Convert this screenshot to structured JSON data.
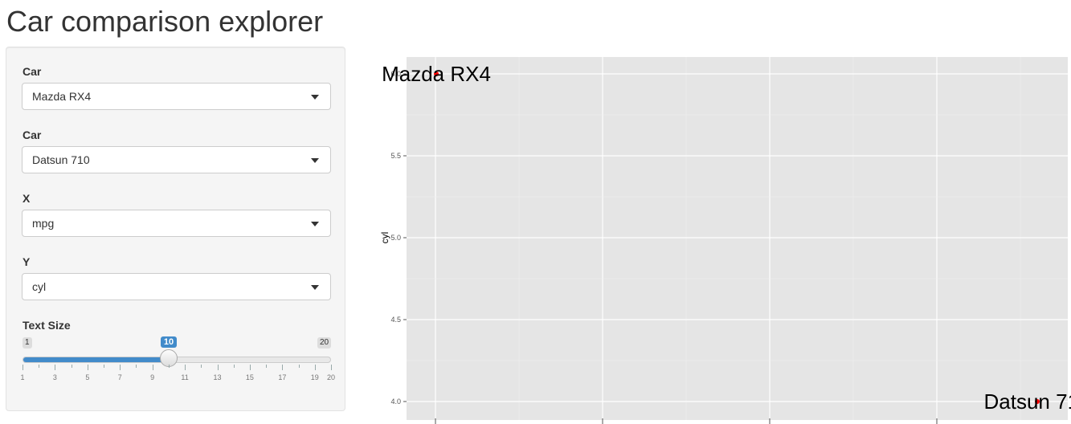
{
  "page": {
    "title": "Car comparison explorer"
  },
  "sidebar": {
    "car1": {
      "label": "Car",
      "value": "Mazda RX4"
    },
    "car2": {
      "label": "Car",
      "value": "Datsun 710"
    },
    "x": {
      "label": "X",
      "value": "mpg"
    },
    "y": {
      "label": "Y",
      "value": "cyl"
    },
    "text_size": {
      "label": "Text Size",
      "min": 1,
      "max": 20,
      "value": 10,
      "min_label": "1",
      "max_label": "20",
      "value_label": "10",
      "tick_labels": [
        "1",
        "3",
        "5",
        "7",
        "9",
        "11",
        "13",
        "15",
        "17",
        "19",
        "20"
      ]
    }
  },
  "colors": {
    "accent": "#428bca",
    "panel_bg": "#e5e5e5",
    "point": "#ff0000"
  },
  "chart_data": {
    "type": "scatter",
    "ylabel": "cyl",
    "xlabel": "",
    "y_ticks": [
      "6.0",
      "5.5",
      "5.0",
      "4.5",
      "4.0"
    ],
    "ylim": [
      4.0,
      6.0
    ],
    "grid": true,
    "points": [
      {
        "label": "Mazda RX4",
        "y": 6.0
      },
      {
        "label": "Datsun 710",
        "y": 4.0
      }
    ]
  }
}
